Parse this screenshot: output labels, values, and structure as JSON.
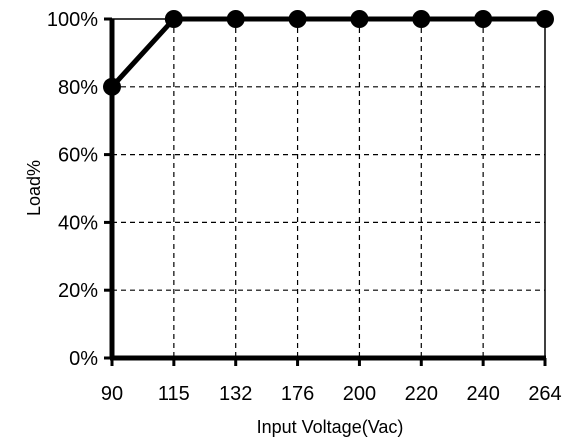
{
  "chart_data": {
    "type": "line",
    "xlabel": "Input Voltage(Vac)",
    "ylabel": "Load%",
    "x_categories": [
      "90",
      "115",
      "132",
      "176",
      "200",
      "220",
      "240",
      "264"
    ],
    "y_ticks": [
      "0%",
      "20%",
      "40%",
      "60%",
      "80%",
      "100%"
    ],
    "ylim": [
      0,
      100
    ],
    "grid": true,
    "grid_style": "dashed",
    "series": [
      {
        "values": [
          80,
          100,
          100,
          100,
          100,
          100,
          100,
          100
        ]
      }
    ],
    "line_color": "#000000"
  }
}
